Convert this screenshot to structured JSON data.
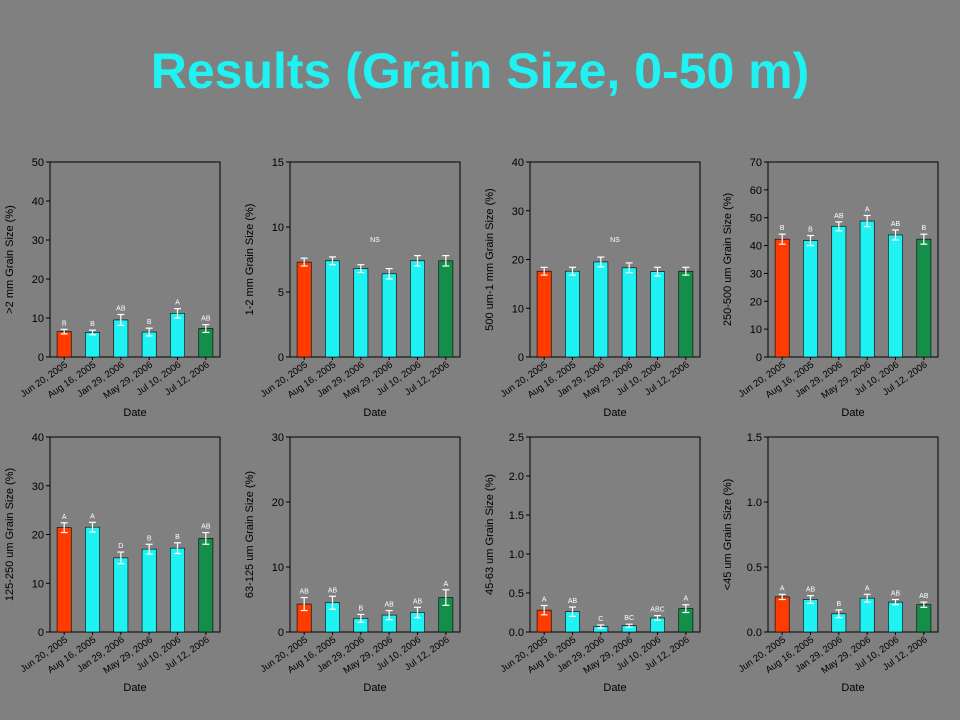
{
  "slide": {
    "title": "Results (Grain Size, 0-50 m)"
  },
  "colors": {
    "background": "#808080",
    "title": "#1ef2f2",
    "first_bar": "#ff3b00",
    "middle_bars": "#1ef2f2",
    "last_bar": "#138f4a",
    "axis": "#000000"
  },
  "chart_data": [
    {
      "type": "bar",
      "ylabel": ">2 mm Grain Size (%)",
      "xlabel": "Date",
      "categories": [
        "Jun 20, 2005",
        "Aug 16, 2005",
        "Jan 29, 2006",
        "May 29, 2006",
        "Jul 10, 2006",
        "Jul 12, 2006"
      ],
      "values": [
        6.5,
        6.3,
        9.5,
        6.4,
        11.2,
        7.3
      ],
      "errors": [
        0.6,
        0.6,
        1.4,
        1.0,
        1.2,
        1.0
      ],
      "letters": [
        "B",
        "B",
        "AB",
        "B",
        "A",
        "AB"
      ],
      "note": "",
      "ylim": [
        0,
        50
      ],
      "yticks": [
        "0",
        "10",
        "20",
        "30",
        "40",
        "50"
      ]
    },
    {
      "type": "bar",
      "ylabel": "1-2 mm Grain Size (%)",
      "xlabel": "Date",
      "categories": [
        "Jun 20, 2005",
        "Aug 16, 2005",
        "Jan 29, 2006",
        "May 29, 2006",
        "Jul 10, 2006",
        "Jul 12, 2006"
      ],
      "values": [
        7.3,
        7.4,
        6.8,
        6.4,
        7.4,
        7.4
      ],
      "errors": [
        0.3,
        0.3,
        0.3,
        0.4,
        0.4,
        0.4
      ],
      "letters": [
        "",
        "",
        "",
        "",
        "",
        ""
      ],
      "note": "NS",
      "ylim": [
        0,
        15
      ],
      "yticks": [
        "0",
        "5",
        "10",
        "15"
      ]
    },
    {
      "type": "bar",
      "ylabel": "500 um-1 mm Grain Size (%)",
      "xlabel": "Date",
      "categories": [
        "Jun 20, 2005",
        "Aug 16, 2005",
        "Jan 29, 2006",
        "May 29, 2006",
        "Jul 10, 2006",
        "Jul 12, 2006"
      ],
      "values": [
        17.6,
        17.6,
        19.5,
        18.3,
        17.5,
        17.6
      ],
      "errors": [
        0.8,
        0.8,
        1.0,
        1.0,
        0.9,
        0.8
      ],
      "letters": [
        "",
        "",
        "",
        "",
        "",
        ""
      ],
      "note": "NS",
      "ylim": [
        0,
        40
      ],
      "yticks": [
        "0",
        "10",
        "20",
        "30",
        "40"
      ]
    },
    {
      "type": "bar",
      "ylabel": "250-500 um Grain Size (%)",
      "xlabel": "Date",
      "categories": [
        "Jun 20, 2005",
        "Aug 16, 2005",
        "Jan 29, 2006",
        "May 29, 2006",
        "Jul 10, 2006",
        "Jul 12, 2006"
      ],
      "values": [
        42.3,
        41.8,
        46.9,
        48.8,
        43.8,
        42.3
      ],
      "errors": [
        1.8,
        1.8,
        1.6,
        2.0,
        1.8,
        1.8
      ],
      "letters": [
        "B",
        "B",
        "AB",
        "A",
        "AB",
        "B"
      ],
      "note": "",
      "ylim": [
        0,
        70
      ],
      "yticks": [
        "0",
        "10",
        "20",
        "30",
        "40",
        "50",
        "60",
        "70"
      ]
    },
    {
      "type": "bar",
      "ylabel": "125-250 um Grain Size (%)",
      "xlabel": "Date",
      "categories": [
        "Jun 20, 2005",
        "Aug 16, 2005",
        "Jan 29, 2006",
        "May 29, 2006",
        "Jul 10, 2006",
        "Jul 12, 2006"
      ],
      "values": [
        21.4,
        21.5,
        15.2,
        17.0,
        17.2,
        19.2
      ],
      "errors": [
        1.0,
        1.0,
        1.2,
        1.0,
        1.1,
        1.2
      ],
      "letters": [
        "A",
        "A",
        "D",
        "B",
        "B",
        "AB"
      ],
      "note": "",
      "ylim": [
        0,
        40
      ],
      "yticks": [
        "0",
        "10",
        "20",
        "30",
        "40"
      ]
    },
    {
      "type": "bar",
      "ylabel": "63-125 um Grain Size (%)",
      "xlabel": "Date",
      "categories": [
        "Jun 20, 2005",
        "Aug 16, 2005",
        "Jan 29, 2006",
        "May 29, 2006",
        "Jul 10, 2006",
        "Jul 12, 2006"
      ],
      "values": [
        4.3,
        4.5,
        2.1,
        2.6,
        3.0,
        5.3
      ],
      "errors": [
        1.0,
        1.0,
        0.6,
        0.7,
        0.8,
        1.2
      ],
      "letters": [
        "AB",
        "AB",
        "B",
        "AB",
        "AB",
        "A"
      ],
      "note": "",
      "ylim": [
        0,
        30
      ],
      "yticks": [
        "0",
        "10",
        "20",
        "30"
      ]
    },
    {
      "type": "bar",
      "ylabel": "45-63 um Grain Size (%)",
      "xlabel": "Date",
      "categories": [
        "Jun 20, 2005",
        "Aug 16, 2005",
        "Jan 29, 2006",
        "May 29, 2006",
        "Jul 10, 2006",
        "Jul 12, 2006"
      ],
      "values": [
        0.28,
        0.26,
        0.07,
        0.08,
        0.18,
        0.3
      ],
      "errors": [
        0.06,
        0.06,
        0.02,
        0.02,
        0.03,
        0.05
      ],
      "letters": [
        "A",
        "AB",
        "C",
        "BC",
        "ABC",
        "A"
      ],
      "note": "",
      "ylim": [
        0,
        2.5
      ],
      "yticks": [
        "0.0",
        "0.5",
        "1.0",
        "1.5",
        "2.0",
        "2.5"
      ]
    },
    {
      "type": "bar",
      "ylabel": "<45 um Grain Size (%)",
      "xlabel": "Date",
      "categories": [
        "Jun 20, 2005",
        "Aug 16, 2005",
        "Jan 29, 2006",
        "May 29, 2006",
        "Jul 10, 2006",
        "Jul 12, 2006"
      ],
      "values": [
        0.27,
        0.25,
        0.14,
        0.26,
        0.23,
        0.21
      ],
      "errors": [
        0.02,
        0.03,
        0.03,
        0.03,
        0.02,
        0.02
      ],
      "letters": [
        "A",
        "AB",
        "B",
        "A",
        "AB",
        "AB"
      ],
      "note": "",
      "ylim": [
        0,
        1.5
      ],
      "yticks": [
        "0.0",
        "0.5",
        "1.0",
        "1.5"
      ]
    }
  ]
}
